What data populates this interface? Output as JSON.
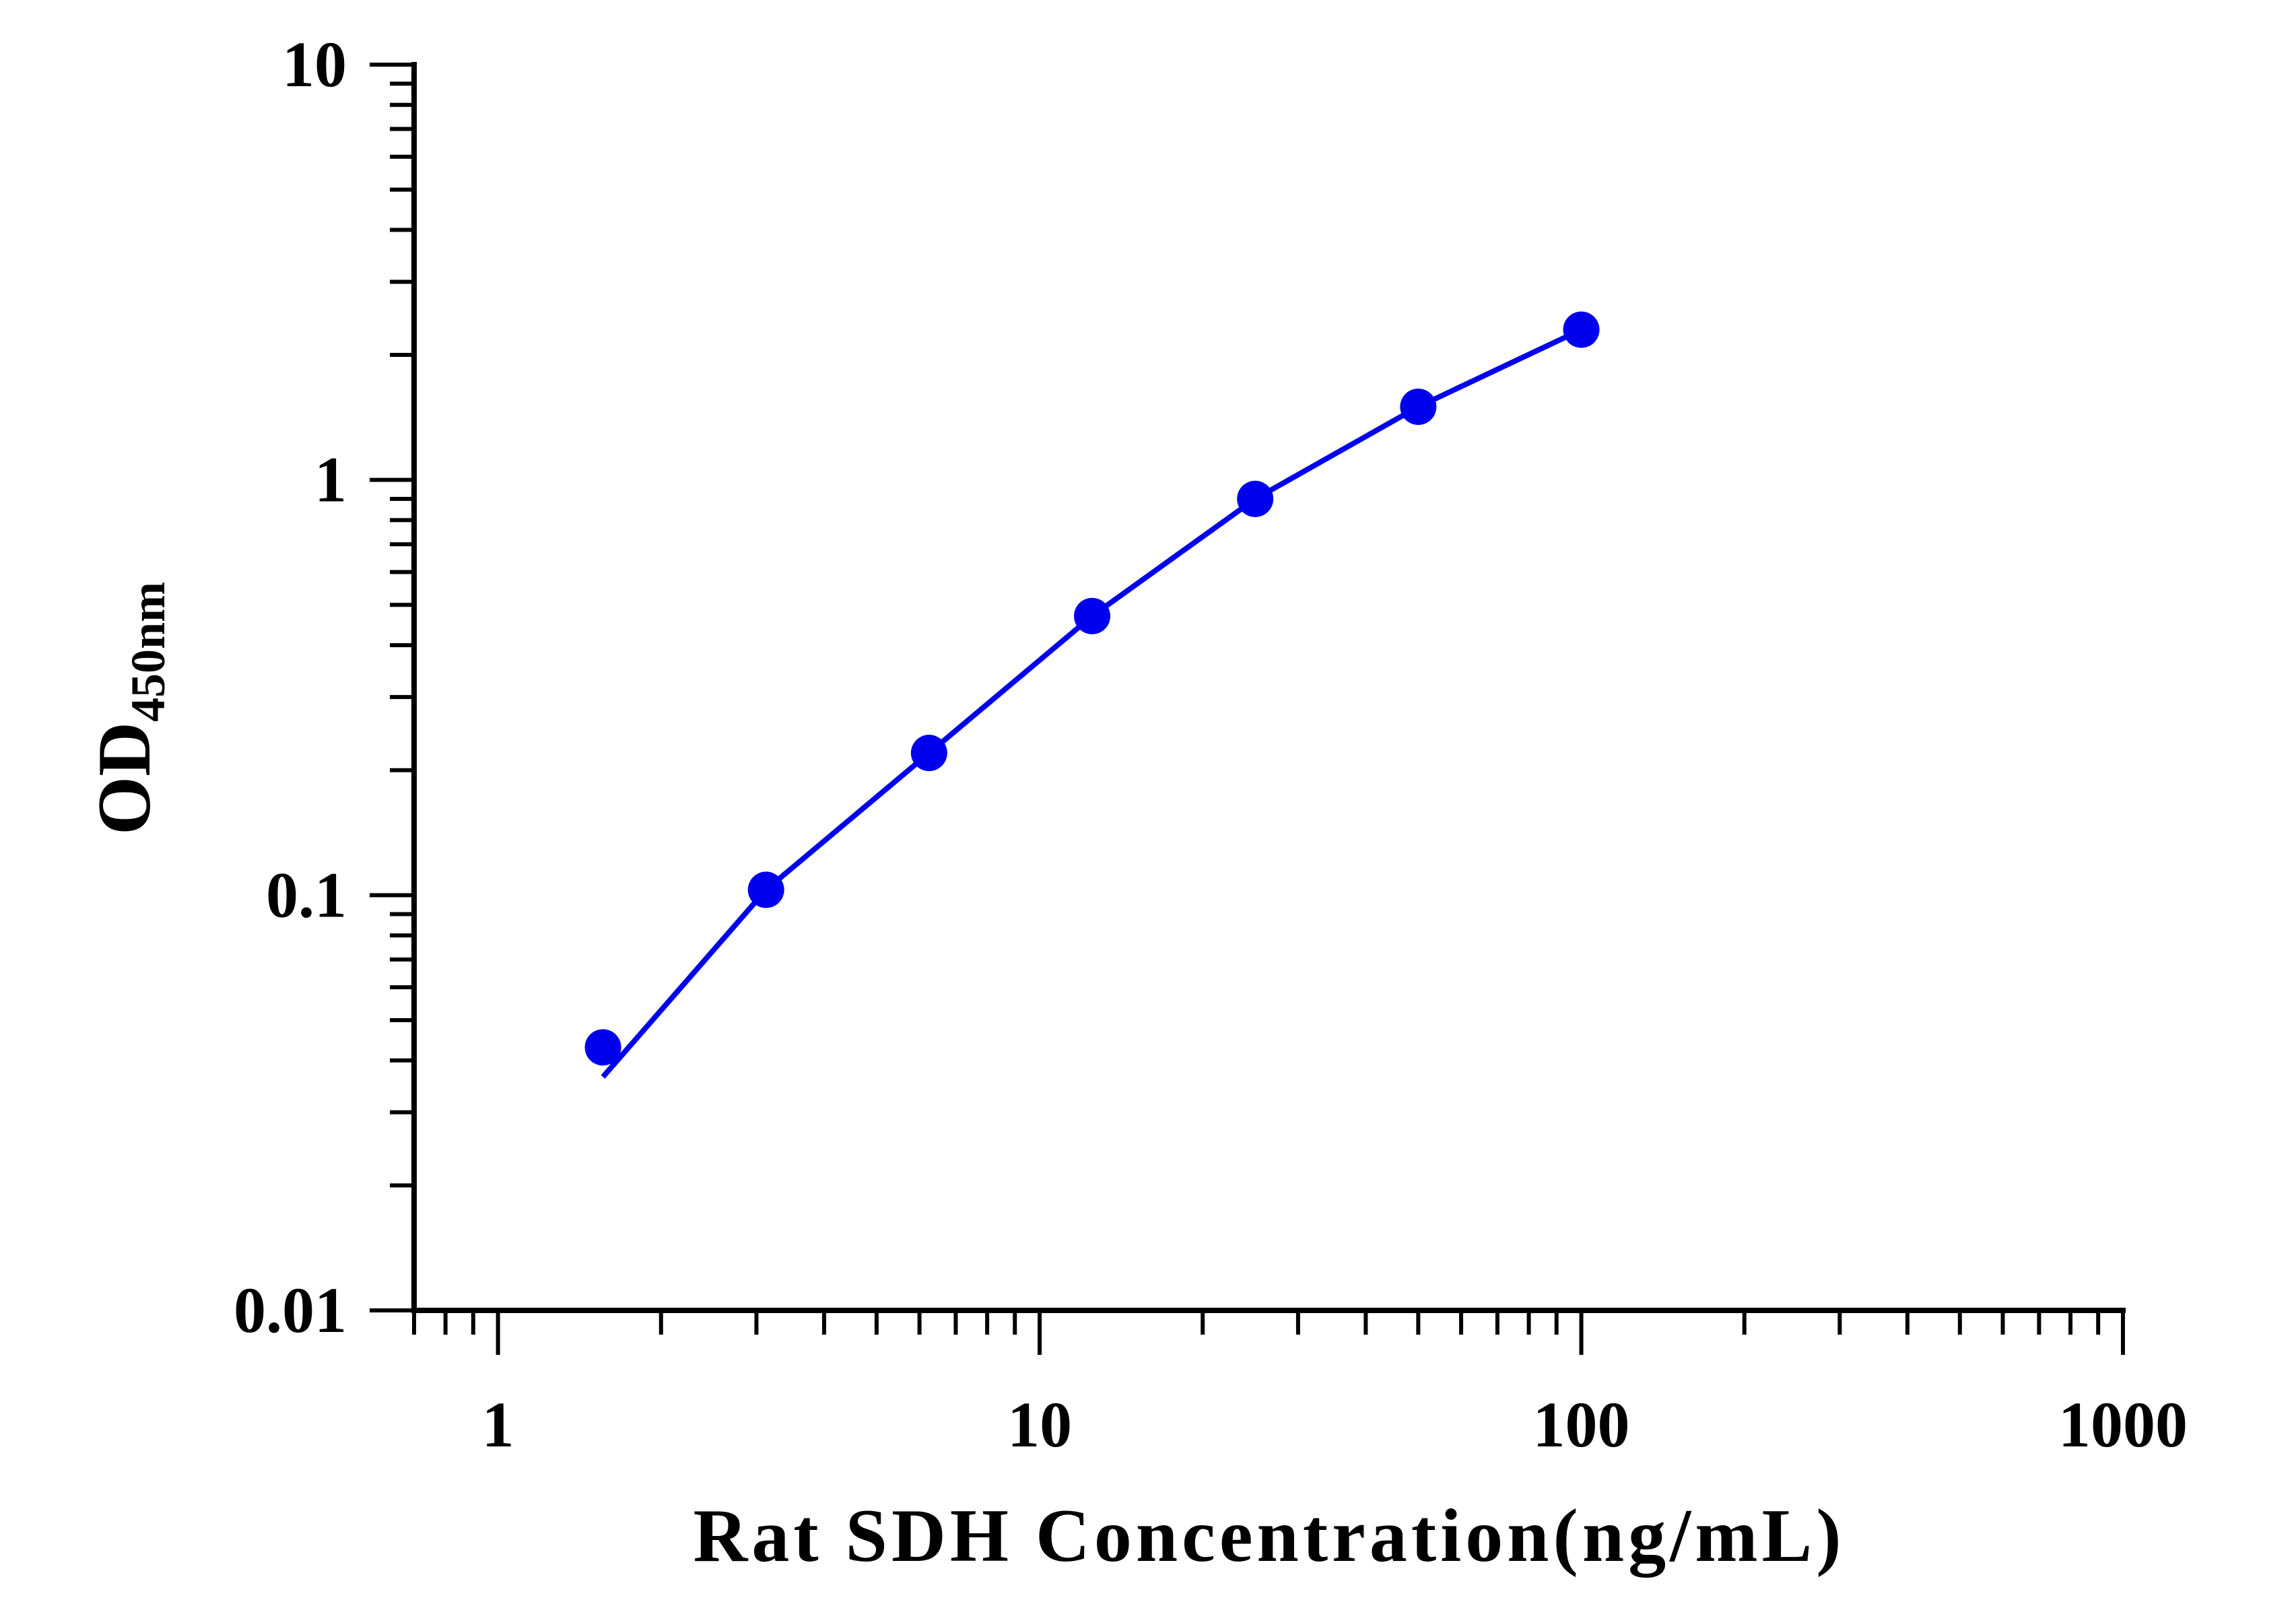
{
  "chart_data": {
    "type": "line",
    "xlabel": "Rat SDH Concentration(ng/mL)",
    "ylabel_main": "OD",
    "ylabel_sub": "450nm",
    "x_scale": "log",
    "y_scale": "log",
    "xlim": [
      0.7,
      1000
    ],
    "ylim": [
      0.01,
      10
    ],
    "x_ticks": [
      {
        "value": 1,
        "label": "1"
      },
      {
        "value": 10,
        "label": "10"
      },
      {
        "value": 100,
        "label": "100"
      },
      {
        "value": 1000,
        "label": "1000"
      }
    ],
    "y_ticks": [
      {
        "value": 0.01,
        "label": "0.01"
      },
      {
        "value": 0.1,
        "label": "0.1"
      },
      {
        "value": 1,
        "label": "1"
      },
      {
        "value": 10,
        "label": "10"
      }
    ],
    "grid": false,
    "series": [
      {
        "color": "#0000ee",
        "points": [
          {
            "x": 1.5625,
            "y": 0.043
          },
          {
            "x": 3.125,
            "y": 0.103
          },
          {
            "x": 6.25,
            "y": 0.22
          },
          {
            "x": 12.5,
            "y": 0.47
          },
          {
            "x": 25,
            "y": 0.9
          },
          {
            "x": 50,
            "y": 1.5
          },
          {
            "x": 100,
            "y": 2.3
          }
        ],
        "fit_curve": [
          {
            "x": 1.5625,
            "y": 0.0365
          },
          {
            "x": 3.125,
            "y": 0.103
          },
          {
            "x": 6.25,
            "y": 0.22
          },
          {
            "x": 12.5,
            "y": 0.47
          },
          {
            "x": 25,
            "y": 0.9
          },
          {
            "x": 50,
            "y": 1.5
          },
          {
            "x": 100,
            "y": 2.3
          }
        ]
      }
    ]
  }
}
